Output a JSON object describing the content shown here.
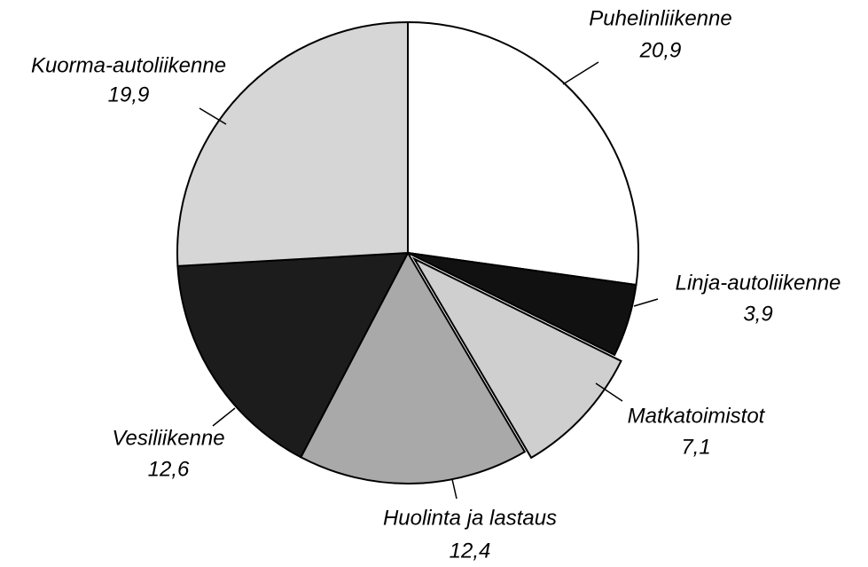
{
  "chart_data": {
    "type": "pie",
    "categories": [
      "Puhelinliikenne",
      "Linja-autoliikenne",
      "Matkatoimistot",
      "Huolinta ja lastaus",
      "Vesiliikenne",
      "Kuorma-autoliikenne"
    ],
    "values": [
      20.9,
      3.9,
      7.1,
      12.4,
      12.6,
      19.9
    ],
    "value_labels": [
      "20,9",
      "3,9",
      "7,1",
      "12,4",
      "12,6",
      "19,9"
    ],
    "colors": [
      "#ffffff",
      "#111111",
      "#cfcfcf",
      "#a9a9a9",
      "#1c1c1c",
      "#d6d6d6"
    ]
  }
}
